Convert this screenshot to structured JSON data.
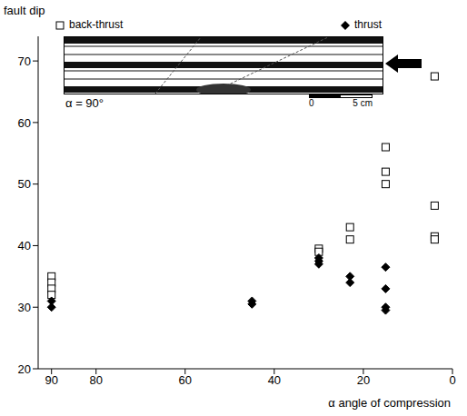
{
  "chart_data": {
    "type": "scatter",
    "x_label": "α angle of compression",
    "y_label": "fault dip",
    "xlim": [
      93,
      0
    ],
    "xticks": [
      90,
      80,
      60,
      40,
      20,
      0
    ],
    "ylim": [
      20,
      74
    ],
    "yticks": [
      20,
      30,
      40,
      50,
      60,
      70
    ],
    "grid": false,
    "legend": "top",
    "annotations": [
      "α = 90°",
      "0",
      "5 cm"
    ],
    "series": [
      {
        "name": "back-thrust",
        "color": "#000000",
        "marker": "square",
        "x": [
          90,
          90,
          90,
          90,
          30,
          30,
          23,
          23,
          15,
          15,
          15,
          4,
          4,
          4,
          4
        ],
        "values": [
          35,
          34,
          33,
          32,
          39.5,
          39,
          43,
          41,
          56,
          52,
          50,
          67.5,
          46.5,
          41.5,
          41
        ]
      },
      {
        "name": "thrust",
        "color": "#000000",
        "marker": "diamond",
        "x": [
          90,
          90,
          45,
          45,
          30,
          30,
          30,
          23,
          23,
          15,
          15,
          15,
          15
        ],
        "values": [
          31,
          30,
          31,
          30.5,
          38,
          37.5,
          37,
          35,
          34,
          36.5,
          33,
          30,
          29.5
        ]
      }
    ]
  }
}
